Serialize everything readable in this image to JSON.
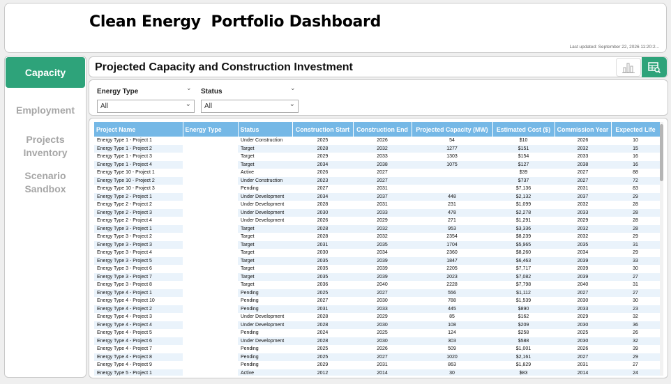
{
  "header": {
    "title": "Clean Energy  Portfolio Dashboard",
    "last_updated": "Last updated: September 22, 2026 11:20:2..."
  },
  "sidebar": {
    "items": [
      {
        "label": "Capacity",
        "active": true
      },
      {
        "label": "Employment",
        "active": false
      },
      {
        "label": "Projects\nInventory",
        "active": false
      },
      {
        "label": "Scenario\nSandbox",
        "active": false
      }
    ]
  },
  "page_title": "Projected Capacity and Construction Investment",
  "toolbar": {
    "chart_view_icon": "bar-chart-icon",
    "table_view_icon": "table-search-icon"
  },
  "filters": {
    "energy_type": {
      "label": "Energy Type",
      "value": "All"
    },
    "status": {
      "label": "Status",
      "value": "All"
    }
  },
  "table": {
    "columns": [
      "Project Name",
      "Energy Type",
      "Status",
      "Construction Start",
      "Construction End",
      "Projected Capacity (MW)",
      "Estimated Cost ($)",
      "Commission Year",
      "Expected Life"
    ],
    "rows": [
      [
        "Energy Type 1 - Project 1",
        "",
        "Under Construction",
        "2025",
        "2026",
        "54",
        "$10",
        "2026",
        "10"
      ],
      [
        "Energy Type 1 - Project 2",
        "",
        "Target",
        "2028",
        "2032",
        "1277",
        "$151",
        "2032",
        "15"
      ],
      [
        "Energy Type 1 - Project 3",
        "",
        "Target",
        "2029",
        "2033",
        "1303",
        "$154",
        "2033",
        "16"
      ],
      [
        "Energy Type 1 - Project 4",
        "",
        "Target",
        "2034",
        "2038",
        "1075",
        "$127",
        "2038",
        "16"
      ],
      [
        "Energy Type 10 - Project 1",
        "",
        "Active",
        "2026",
        "2027",
        "",
        "$39",
        "2027",
        "88"
      ],
      [
        "Energy Type 10 - Project 2",
        "",
        "Under Construction",
        "2023",
        "2027",
        "",
        "$737",
        "2027",
        "72"
      ],
      [
        "Energy Type 10 - Project 3",
        "",
        "Pending",
        "2027",
        "2031",
        "",
        "$7,136",
        "2031",
        "83"
      ],
      [
        "Energy Type 2 - Project 1",
        "",
        "Under Development",
        "2034",
        "2037",
        "448",
        "$2,132",
        "2037",
        "29"
      ],
      [
        "Energy Type 2 - Project 2",
        "",
        "Under Development",
        "2028",
        "2031",
        "231",
        "$1,099",
        "2032",
        "28"
      ],
      [
        "Energy Type 2 - Project 3",
        "",
        "Under Development",
        "2030",
        "2033",
        "478",
        "$2,278",
        "2033",
        "28"
      ],
      [
        "Energy Type 2 - Project 4",
        "",
        "Under Development",
        "2026",
        "2029",
        "271",
        "$1,291",
        "2029",
        "28"
      ],
      [
        "Energy Type 3 - Project 1",
        "",
        "Target",
        "2028",
        "2032",
        "953",
        "$3,336",
        "2032",
        "28"
      ],
      [
        "Energy Type 3 - Project 2",
        "",
        "Target",
        "2028",
        "2032",
        "2354",
        "$8,239",
        "2032",
        "29"
      ],
      [
        "Energy Type 3 - Project 3",
        "",
        "Target",
        "2031",
        "2035",
        "1704",
        "$5,965",
        "2035",
        "31"
      ],
      [
        "Energy Type 3 - Project 4",
        "",
        "Target",
        "2030",
        "2034",
        "2360",
        "$8,260",
        "2034",
        "29"
      ],
      [
        "Energy Type 3 - Project 5",
        "",
        "Target",
        "2035",
        "2039",
        "1847",
        "$6,463",
        "2039",
        "33"
      ],
      [
        "Energy Type 3 - Project 6",
        "",
        "Target",
        "2035",
        "2039",
        "2205",
        "$7,717",
        "2039",
        "30"
      ],
      [
        "Energy Type 3 - Project 7",
        "",
        "Target",
        "2035",
        "2039",
        "2023",
        "$7,082",
        "2039",
        "27"
      ],
      [
        "Energy Type 3 - Project 8",
        "",
        "Target",
        "2036",
        "2040",
        "2228",
        "$7,798",
        "2040",
        "31"
      ],
      [
        "Energy Type 4 - Project 1",
        "",
        "Pending",
        "2025",
        "2027",
        "556",
        "$1,112",
        "2027",
        "27"
      ],
      [
        "Energy Type 4 - Project 10",
        "",
        "Pending",
        "2027",
        "2030",
        "788",
        "$1,539",
        "2030",
        "30"
      ],
      [
        "Energy Type 4 - Project 2",
        "",
        "Pending",
        "2031",
        "2033",
        "445",
        "$890",
        "2033",
        "23"
      ],
      [
        "Energy Type 4 - Project 3",
        "",
        "Under Development",
        "2028",
        "2029",
        "85",
        "$162",
        "2029",
        "32"
      ],
      [
        "Energy Type 4 - Project 4",
        "",
        "Under Development",
        "2028",
        "2030",
        "108",
        "$209",
        "2030",
        "36"
      ],
      [
        "Energy Type 4 - Project 5",
        "",
        "Pending",
        "2024",
        "2025",
        "124",
        "$258",
        "2025",
        "26"
      ],
      [
        "Energy Type 4 - Project 6",
        "",
        "Under Development",
        "2028",
        "2030",
        "303",
        "$588",
        "2030",
        "32"
      ],
      [
        "Energy Type 4 - Project 7",
        "",
        "Pending",
        "2025",
        "2026",
        "509",
        "$1,001",
        "2026",
        "39"
      ],
      [
        "Energy Type 4 - Project 8",
        "",
        "Pending",
        "2025",
        "2027",
        "1020",
        "$2,161",
        "2027",
        "29"
      ],
      [
        "Energy Type 4 - Project 9",
        "",
        "Pending",
        "2029",
        "2031",
        "863",
        "$1,829",
        "2031",
        "27"
      ],
      [
        "Energy Type 5 - Project 1",
        "",
        "Active",
        "2012",
        "2014",
        "30",
        "$83",
        "2014",
        "24"
      ]
    ]
  }
}
